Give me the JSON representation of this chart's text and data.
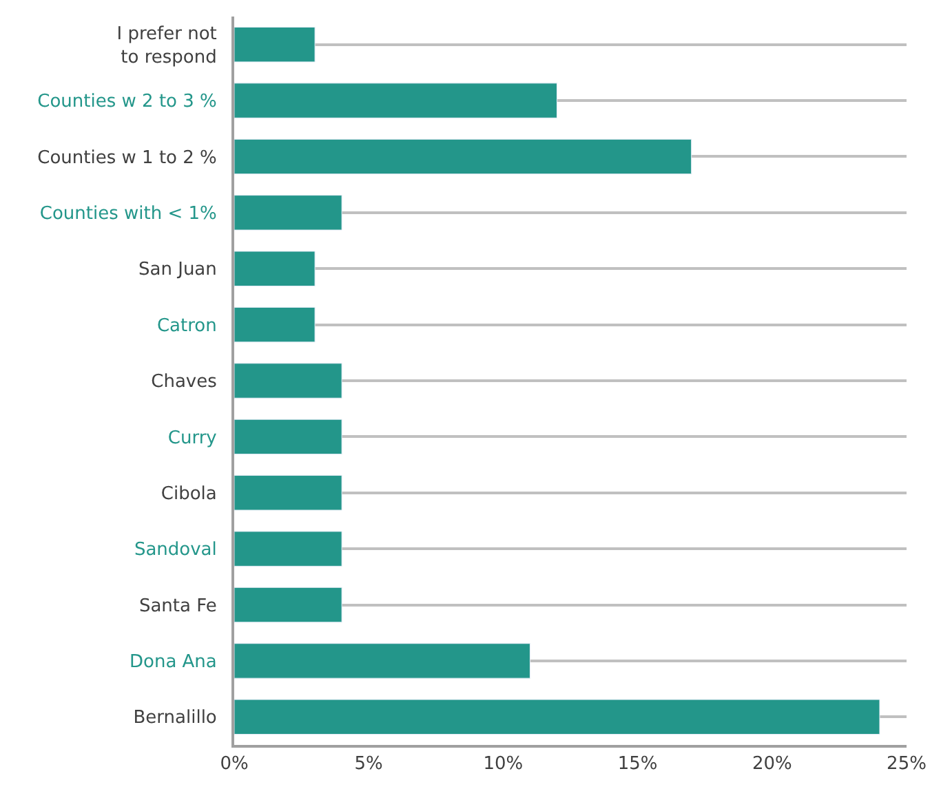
{
  "chart_data": {
    "type": "bar",
    "orientation": "horizontal",
    "categories": [
      "I prefer not to respond",
      "Counties w 2 to 3 %",
      "Counties w 1 to 2 %",
      "Counties with < 1%",
      "San Juan",
      "Catron",
      "Chaves",
      "Curry",
      "Cibola",
      "Sandoval",
      "Santa Fe",
      "Dona Ana",
      "Bernalillo"
    ],
    "values": [
      3,
      12,
      17,
      4,
      3,
      3,
      4,
      4,
      4,
      4,
      4,
      11,
      24
    ],
    "color": "#23968a",
    "xlim": [
      0,
      25
    ],
    "xticks": [
      {
        "value": 0,
        "label": "0%"
      },
      {
        "value": 5,
        "label": "5%"
      },
      {
        "value": 10,
        "label": "10%"
      },
      {
        "value": 15,
        "label": "15%"
      },
      {
        "value": 20,
        "label": "20%"
      },
      {
        "value": 25,
        "label": "25%"
      }
    ],
    "grid": "y"
  }
}
